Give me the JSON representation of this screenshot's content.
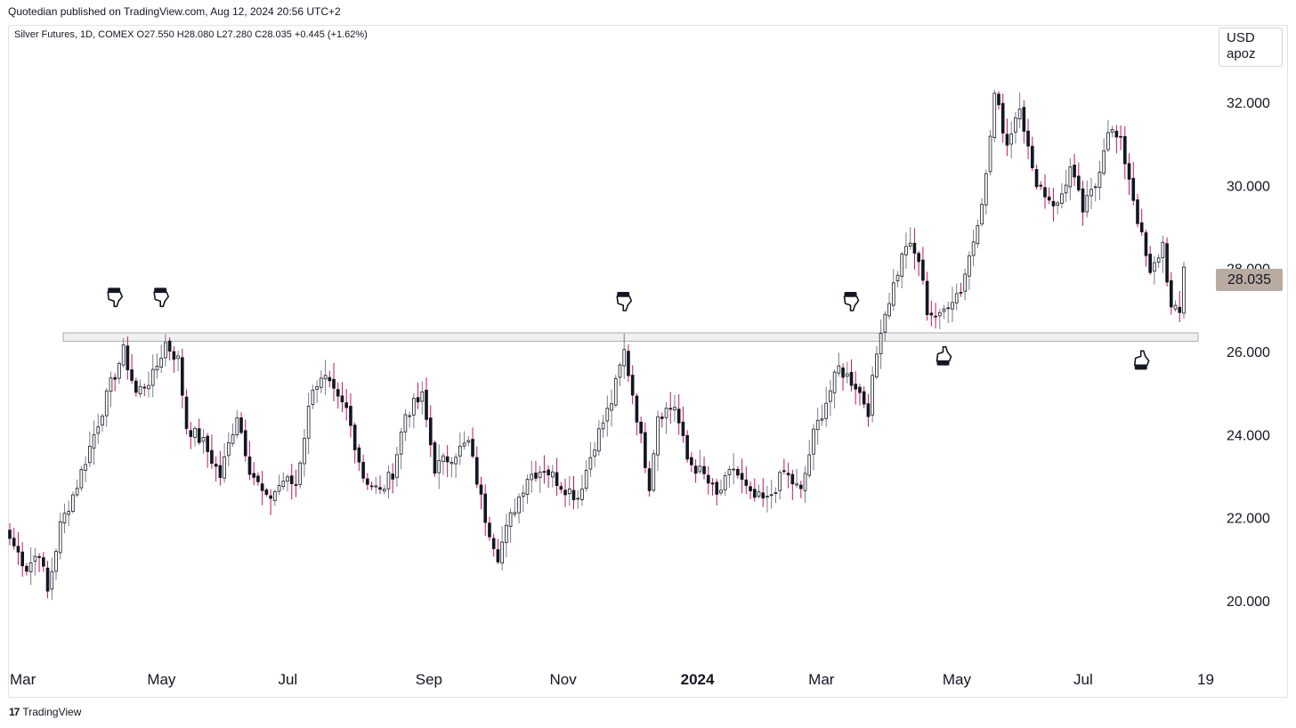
{
  "header": {
    "published": "Quotedian published on TradingView.com, Aug 12, 2024 20:56 UTC+2",
    "symbol_line": "Silver Futures, 1D, COMEX  O27.550  H28.080  L27.280  C28.035  +0.445 (+1.62%)"
  },
  "currency_box": {
    "currency": "USD",
    "unit": "apoz"
  },
  "last_price_label": "28.035",
  "footer": {
    "logo_glyph": "17",
    "brand": "TradingView"
  },
  "colors": {
    "up": "#ffffff",
    "down": "#131722",
    "wick_up": "#787b86",
    "wick_down": "#c2185b",
    "zone": "#f0f0f0",
    "price_tag": "#b9aba0"
  },
  "chart_data": {
    "type": "candlestick",
    "title": "",
    "ylim": [
      18.5,
      33.5
    ],
    "y_ticks": [
      "20.000",
      "22.000",
      "24.000",
      "26.000",
      "28.000",
      "30.000",
      "32.000"
    ],
    "x_ticks": [
      {
        "label": "Mar",
        "bold": false
      },
      {
        "label": "May",
        "bold": false
      },
      {
        "label": "Jul",
        "bold": false
      },
      {
        "label": "Sep",
        "bold": false
      },
      {
        "label": "Nov",
        "bold": false
      },
      {
        "label": "2024",
        "bold": true
      },
      {
        "label": "Mar",
        "bold": false
      },
      {
        "label": "May",
        "bold": false
      },
      {
        "label": "Jul",
        "bold": false
      },
      {
        "label": "19",
        "bold": false
      }
    ],
    "resistance_zone": [
      26.25,
      26.45
    ],
    "last_close": 28.035,
    "markers": [
      {
        "icon": "pointing-down-hand-icon",
        "index": 25,
        "price": 27.3
      },
      {
        "icon": "pointing-down-hand-icon",
        "index": 36,
        "price": 27.3
      },
      {
        "icon": "pointing-down-hand-icon",
        "index": 146,
        "price": 27.2
      },
      {
        "icon": "pointing-down-hand-icon",
        "index": 200,
        "price": 27.2
      },
      {
        "icon": "pointing-up-hand-icon",
        "index": 222,
        "price": 25.9
      },
      {
        "icon": "pointing-up-hand-icon",
        "index": 269,
        "price": 25.8
      }
    ],
    "close_anchors": [
      [
        0,
        21.5
      ],
      [
        4,
        20.8
      ],
      [
        7,
        21.2
      ],
      [
        9,
        20.2
      ],
      [
        12,
        21.8
      ],
      [
        16,
        22.8
      ],
      [
        20,
        24.0
      ],
      [
        24,
        25.2
      ],
      [
        27,
        26.0
      ],
      [
        30,
        25.0
      ],
      [
        34,
        25.4
      ],
      [
        37,
        26.2
      ],
      [
        40,
        25.8
      ],
      [
        42,
        24.2
      ],
      [
        46,
        23.8
      ],
      [
        50,
        23.0
      ],
      [
        54,
        24.5
      ],
      [
        57,
        23.2
      ],
      [
        61,
        22.4
      ],
      [
        65,
        22.9
      ],
      [
        68,
        22.8
      ],
      [
        72,
        25.2
      ],
      [
        75,
        25.3
      ],
      [
        78,
        24.8
      ],
      [
        80,
        24.6
      ],
      [
        84,
        23.0
      ],
      [
        88,
        22.6
      ],
      [
        91,
        23.1
      ],
      [
        94,
        24.5
      ],
      [
        98,
        24.9
      ],
      [
        101,
        23.2
      ],
      [
        105,
        23.5
      ],
      [
        109,
        23.8
      ],
      [
        113,
        22.0
      ],
      [
        116,
        21.1
      ],
      [
        119,
        22.0
      ],
      [
        123,
        23.0
      ],
      [
        127,
        23.2
      ],
      [
        131,
        22.8
      ],
      [
        135,
        22.5
      ],
      [
        139,
        23.8
      ],
      [
        143,
        24.8
      ],
      [
        146,
        26.0
      ],
      [
        148,
        25.0
      ],
      [
        152,
        22.8
      ],
      [
        154,
        24.5
      ],
      [
        158,
        24.7
      ],
      [
        161,
        23.4
      ],
      [
        165,
        23.0
      ],
      [
        168,
        22.5
      ],
      [
        172,
        23.2
      ],
      [
        176,
        22.5
      ],
      [
        180,
        22.4
      ],
      [
        184,
        23.1
      ],
      [
        188,
        22.6
      ],
      [
        191,
        24.0
      ],
      [
        194,
        24.8
      ],
      [
        197,
        25.6
      ],
      [
        201,
        25.2
      ],
      [
        204,
        24.6
      ],
      [
        207,
        26.6
      ],
      [
        210,
        27.6
      ],
      [
        213,
        28.6
      ],
      [
        216,
        28.2
      ],
      [
        218,
        27.0
      ],
      [
        221,
        26.8
      ],
      [
        223,
        27.2
      ],
      [
        226,
        27.5
      ],
      [
        229,
        28.7
      ],
      [
        232,
        30.2
      ],
      [
        234,
        32.2
      ],
      [
        237,
        31.0
      ],
      [
        240,
        32.0
      ],
      [
        243,
        30.3
      ],
      [
        246,
        29.8
      ],
      [
        249,
        29.5
      ],
      [
        252,
        30.4
      ],
      [
        255,
        29.4
      ],
      [
        258,
        30.0
      ],
      [
        261,
        31.4
      ],
      [
        264,
        31.0
      ],
      [
        266,
        30.2
      ],
      [
        268,
        29.2
      ],
      [
        271,
        27.8
      ],
      [
        274,
        28.6
      ],
      [
        276,
        27.0
      ],
      [
        278,
        26.9
      ],
      [
        279,
        28.035
      ]
    ]
  }
}
